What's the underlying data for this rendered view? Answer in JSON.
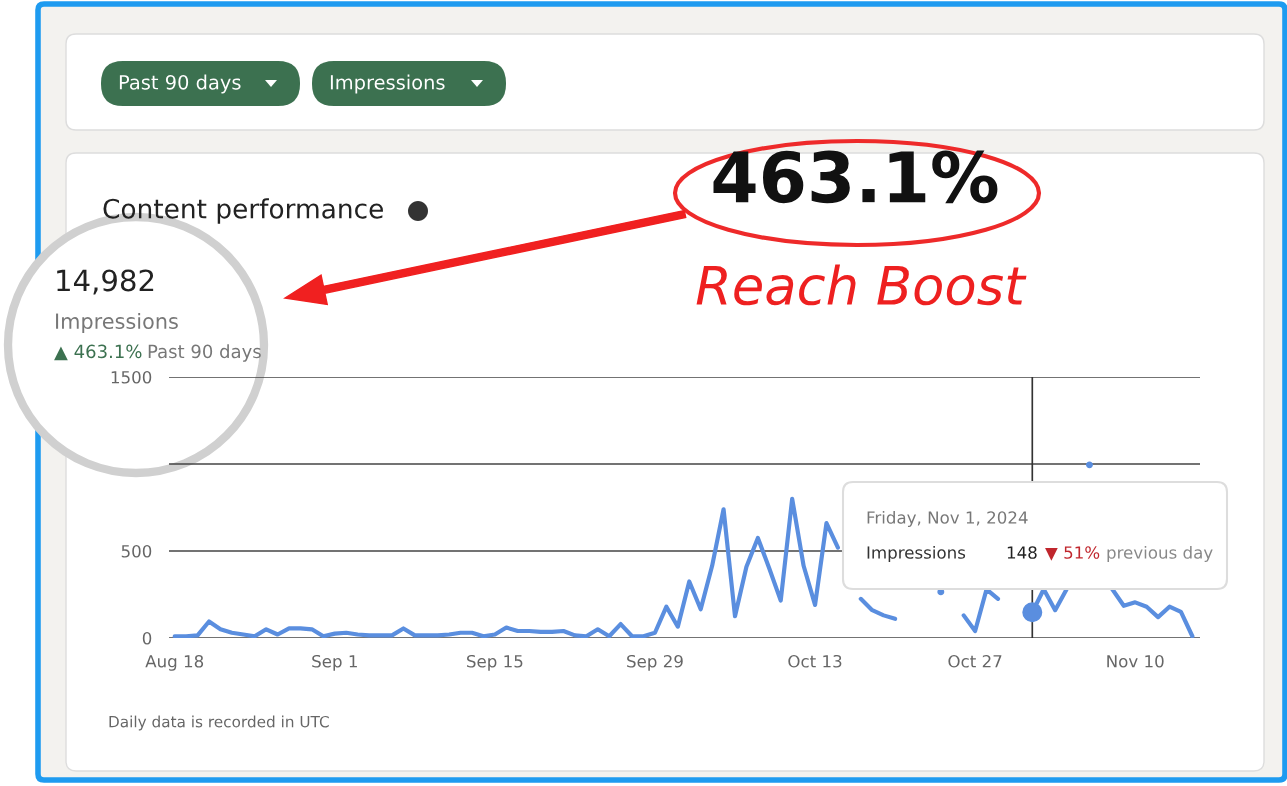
{
  "chart_data": {
    "type": "line",
    "title": "Content performance",
    "x": [
      "2024-08-18",
      "2024-08-19",
      "2024-08-20",
      "2024-08-21",
      "2024-08-22",
      "2024-08-23",
      "2024-08-24",
      "2024-08-25",
      "2024-08-26",
      "2024-08-27",
      "2024-08-28",
      "2024-08-29",
      "2024-08-30",
      "2024-08-31",
      "2024-09-01",
      "2024-09-02",
      "2024-09-03",
      "2024-09-04",
      "2024-09-05",
      "2024-09-06",
      "2024-09-07",
      "2024-09-08",
      "2024-09-09",
      "2024-09-10",
      "2024-09-11",
      "2024-09-12",
      "2024-09-13",
      "2024-09-14",
      "2024-09-15",
      "2024-09-16",
      "2024-09-17",
      "2024-09-18",
      "2024-09-19",
      "2024-09-20",
      "2024-09-21",
      "2024-09-22",
      "2024-09-23",
      "2024-09-24",
      "2024-09-25",
      "2024-09-26",
      "2024-09-27",
      "2024-09-28",
      "2024-09-29",
      "2024-09-30",
      "2024-10-01",
      "2024-10-02",
      "2024-10-03",
      "2024-10-04",
      "2024-10-05",
      "2024-10-06",
      "2024-10-07",
      "2024-10-08",
      "2024-10-09",
      "2024-10-10",
      "2024-10-11",
      "2024-10-12",
      "2024-10-13",
      "2024-10-14",
      "2024-10-15",
      "2024-10-16",
      "2024-10-17",
      "2024-10-18",
      "2024-10-19",
      "2024-10-20",
      "2024-10-21",
      "2024-10-22",
      "2024-10-23",
      "2024-10-24",
      "2024-10-25",
      "2024-10-26",
      "2024-10-27",
      "2024-10-28",
      "2024-10-29",
      "2024-10-30",
      "2024-10-31",
      "2024-11-01",
      "2024-11-02",
      "2024-11-03",
      "2024-11-04",
      "2024-11-05",
      "2024-11-06",
      "2024-11-07",
      "2024-11-08",
      "2024-11-09",
      "2024-11-10",
      "2024-11-11",
      "2024-11-12",
      "2024-11-13",
      "2024-11-14",
      "2024-11-15"
    ],
    "series": [
      {
        "color": "#5a8edf",
        "values": [
          10,
          10,
          15,
          95,
          50,
          30,
          20,
          10,
          50,
          20,
          55,
          55,
          50,
          10,
          25,
          30,
          20,
          15,
          15,
          15,
          55,
          15,
          15,
          15,
          20,
          30,
          30,
          10,
          20,
          60,
          40,
          40,
          35,
          35,
          40,
          15,
          10,
          50,
          10,
          80,
          10,
          10,
          30,
          180,
          65,
          325,
          165,
          415,
          740,
          125,
          410,
          575,
          400,
          215,
          800,
          415,
          190,
          660,
          520,
          null,
          225,
          160,
          130,
          110,
          null,
          null,
          null,
          265,
          null,
          130,
          40,
          280,
          225,
          null,
          null,
          148,
          280,
          160,
          280,
          null,
          995,
          null,
          280,
          185,
          205,
          180,
          120,
          180,
          150,
          10
        ]
      },
      {
        "type": "scatter",
        "color": "#5a8edf",
        "x": [
          "2024-11-01"
        ],
        "values": [
          148
        ],
        "marker": "circle"
      }
    ],
    "xlim": [
      "2024-08-17T12:00",
      "2024-11-15T16:00"
    ],
    "xticks": [
      {
        "value": "2024-08-18",
        "label": "Aug 18"
      },
      {
        "value": "2024-09-01",
        "label": "Sep 1"
      },
      {
        "value": "2024-09-15",
        "label": "Sep 15"
      },
      {
        "value": "2024-09-29",
        "label": "Sep 29"
      },
      {
        "value": "2024-10-13",
        "label": "Oct 13"
      },
      {
        "value": "2024-10-27",
        "label": "Oct 27"
      },
      {
        "value": "2024-11-10",
        "label": "Nov 10"
      }
    ],
    "ylim": [
      0,
      1500
    ],
    "yticks": [
      0,
      500,
      {
        "value": 1000,
        "label": null
      },
      1500
    ],
    "grid": "y",
    "legend": false,
    "marker": "none",
    "line_style": "solid",
    "ref_lines": [
      {
        "axis": "x",
        "value": "2024-11-01",
        "color": "#333333"
      }
    ],
    "annotations": [
      "Past 90 days",
      "Impressions",
      "463.1%",
      "Reach Boost",
      "14,982",
      "Impressions",
      "▲ 463.1%",
      "Past 90 days",
      "Friday, Nov 1, 2024",
      "Impressions",
      "148",
      "▼ 51%",
      "previous day",
      "Daily data is recorded in UTC"
    ]
  }
}
